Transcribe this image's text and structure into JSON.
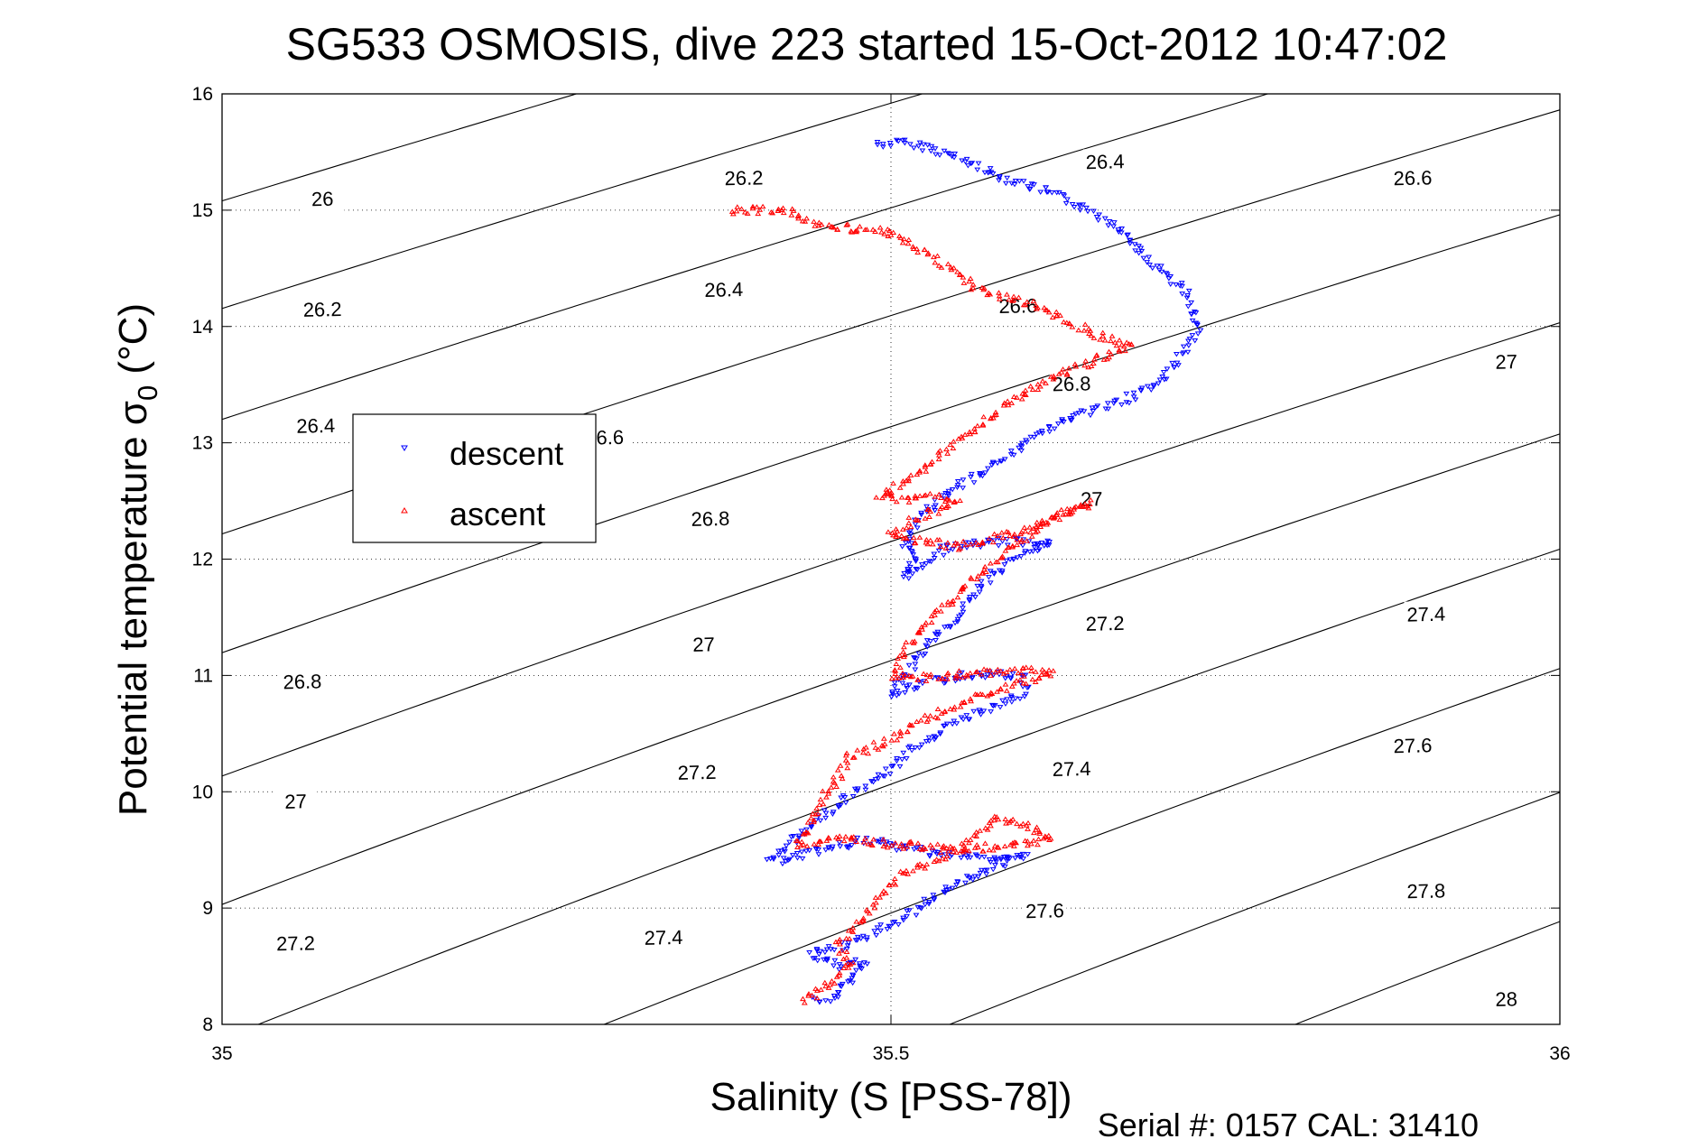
{
  "chart_data": {
    "type": "scatter",
    "title": "SG533 OSMOSIS, dive 223 started 15-Oct-2012 10:47:02",
    "xlabel": "Salinity (S [PSS-78])",
    "ylabel_main": "Potential temperature σ",
    "ylabel_sub": "0",
    "ylabel_unit": " (°C)",
    "footer": "Serial #: 0157  CAL: 31410",
    "xlim": [
      35,
      36
    ],
    "ylim": [
      8,
      16
    ],
    "x_ticks": [
      35,
      35.5,
      36
    ],
    "x_tick_labels": [
      "35",
      "35.5",
      "36"
    ],
    "y_ticks": [
      8,
      9,
      10,
      11,
      12,
      13,
      14,
      15,
      16
    ],
    "y_tick_labels": [
      "8",
      "9",
      "10",
      "11",
      "12",
      "13",
      "14",
      "15",
      "16"
    ],
    "grid": "dotted",
    "legend_position": "left-middle",
    "contours": {
      "levels": [
        26,
        26.2,
        26.4,
        26.6,
        26.8,
        27,
        27.2,
        27.4,
        27.6,
        27.8,
        28
      ],
      "labels": [
        {
          "text": "26",
          "s": 35.075,
          "t": 15.1
        },
        {
          "text": "26.2",
          "s": 35.075,
          "t": 14.15
        },
        {
          "text": "26.4",
          "s": 35.07,
          "t": 13.15
        },
        {
          "text": "26.8",
          "s": 35.06,
          "t": 10.95
        },
        {
          "text": "27",
          "s": 35.055,
          "t": 9.92
        },
        {
          "text": "27.2",
          "s": 35.055,
          "t": 8.7
        },
        {
          "text": "26.2",
          "s": 35.39,
          "t": 15.28
        },
        {
          "text": "26.4",
          "s": 35.375,
          "t": 14.32
        },
        {
          "text": "6.6",
          "s": 35.29,
          "t": 13.05
        },
        {
          "text": "26.8",
          "s": 35.365,
          "t": 12.35
        },
        {
          "text": "27",
          "s": 35.36,
          "t": 11.27
        },
        {
          "text": "27.2",
          "s": 35.355,
          "t": 10.17
        },
        {
          "text": "27.4",
          "s": 35.33,
          "t": 8.75
        },
        {
          "text": "26.4",
          "s": 35.66,
          "t": 15.42
        },
        {
          "text": "26.6",
          "s": 35.595,
          "t": 14.18
        },
        {
          "text": "26.8",
          "s": 35.635,
          "t": 13.51
        },
        {
          "text": "27",
          "s": 35.65,
          "t": 12.52
        },
        {
          "text": "27.2",
          "s": 35.66,
          "t": 11.45
        },
        {
          "text": "27.4",
          "s": 35.635,
          "t": 10.2
        },
        {
          "text": "27.6",
          "s": 35.615,
          "t": 8.98
        },
        {
          "text": "26.6",
          "s": 35.89,
          "t": 15.28
        },
        {
          "text": "27",
          "s": 35.96,
          "t": 13.7
        },
        {
          "text": "27.4",
          "s": 35.9,
          "t": 11.53
        },
        {
          "text": "27.6",
          "s": 35.89,
          "t": 10.4
        },
        {
          "text": "27.8",
          "s": 35.9,
          "t": 9.15
        },
        {
          "text": "28",
          "s": 35.96,
          "t": 8.22
        }
      ]
    },
    "series": [
      {
        "name": "descent",
        "color": "#0000ff",
        "marker": "triangle-down",
        "path": [
          [
            35.49,
            15.57
          ],
          [
            35.51,
            15.58
          ],
          [
            35.53,
            15.54
          ],
          [
            35.55,
            15.45
          ],
          [
            35.58,
            15.3
          ],
          [
            35.62,
            15.15
          ],
          [
            35.65,
            15.0
          ],
          [
            35.67,
            14.85
          ],
          [
            35.69,
            14.6
          ],
          [
            35.72,
            14.3
          ],
          [
            35.73,
            14.0
          ],
          [
            35.72,
            13.8
          ],
          [
            35.7,
            13.5
          ],
          [
            35.67,
            13.35
          ],
          [
            35.63,
            13.2
          ],
          [
            35.6,
            13.0
          ],
          [
            35.57,
            12.75
          ],
          [
            35.54,
            12.55
          ],
          [
            35.52,
            12.35
          ],
          [
            35.51,
            12.15
          ],
          [
            35.52,
            12.0
          ],
          [
            35.51,
            11.85
          ],
          [
            35.54,
            12.1
          ],
          [
            35.58,
            12.15
          ],
          [
            35.62,
            12.15
          ],
          [
            35.59,
            12.0
          ],
          [
            35.57,
            11.8
          ],
          [
            35.55,
            11.5
          ],
          [
            35.53,
            11.3
          ],
          [
            35.51,
            11.0
          ],
          [
            35.5,
            10.85
          ],
          [
            35.53,
            10.95
          ],
          [
            35.57,
            11.02
          ],
          [
            35.6,
            10.98
          ],
          [
            35.6,
            10.85
          ],
          [
            35.58,
            10.75
          ],
          [
            35.55,
            10.6
          ],
          [
            35.52,
            10.4
          ],
          [
            35.5,
            10.2
          ],
          [
            35.47,
            9.98
          ],
          [
            35.45,
            9.8
          ],
          [
            35.43,
            9.6
          ],
          [
            35.41,
            9.4
          ],
          [
            35.45,
            9.5
          ],
          [
            35.48,
            9.58
          ],
          [
            35.51,
            9.52
          ],
          [
            35.55,
            9.45
          ],
          [
            35.58,
            9.42
          ],
          [
            35.6,
            9.45
          ],
          [
            35.58,
            9.38
          ],
          [
            35.55,
            9.2
          ],
          [
            35.52,
            9.0
          ],
          [
            35.49,
            8.8
          ],
          [
            35.47,
            8.7
          ],
          [
            35.44,
            8.6
          ],
          [
            35.46,
            8.5
          ],
          [
            35.48,
            8.55
          ],
          [
            35.47,
            8.4
          ],
          [
            35.46,
            8.25
          ],
          [
            35.44,
            8.2
          ]
        ]
      },
      {
        "name": "ascent",
        "color": "#ff0000",
        "marker": "triangle-up",
        "path": [
          [
            35.38,
            14.99
          ],
          [
            35.4,
            15.0
          ],
          [
            35.42,
            15.0
          ],
          [
            35.43,
            14.92
          ],
          [
            35.46,
            14.85
          ],
          [
            35.5,
            14.8
          ],
          [
            35.53,
            14.6
          ],
          [
            35.56,
            14.35
          ],
          [
            35.6,
            14.2
          ],
          [
            35.64,
            14.0
          ],
          [
            35.66,
            13.9
          ],
          [
            35.68,
            13.85
          ],
          [
            35.65,
            13.7
          ],
          [
            35.62,
            13.55
          ],
          [
            35.59,
            13.35
          ],
          [
            35.56,
            13.1
          ],
          [
            35.53,
            12.85
          ],
          [
            35.51,
            12.65
          ],
          [
            35.49,
            12.55
          ],
          [
            35.51,
            12.5
          ],
          [
            35.53,
            12.55
          ],
          [
            35.55,
            12.5
          ],
          [
            35.52,
            12.35
          ],
          [
            35.5,
            12.2
          ],
          [
            35.53,
            12.15
          ],
          [
            35.55,
            12.1
          ],
          [
            35.6,
            12.25
          ],
          [
            35.63,
            12.4
          ],
          [
            35.65,
            12.48
          ],
          [
            35.62,
            12.35
          ],
          [
            35.59,
            12.1
          ],
          [
            35.56,
            11.8
          ],
          [
            35.53,
            11.5
          ],
          [
            35.51,
            11.2
          ],
          [
            35.5,
            11.0
          ],
          [
            35.53,
            10.98
          ],
          [
            35.57,
            11.02
          ],
          [
            35.6,
            11.05
          ],
          [
            35.62,
            11.02
          ],
          [
            35.6,
            10.95
          ],
          [
            35.57,
            10.85
          ],
          [
            35.53,
            10.65
          ],
          [
            35.5,
            10.45
          ],
          [
            35.47,
            10.3
          ],
          [
            35.46,
            10.1
          ],
          [
            35.45,
            9.95
          ],
          [
            35.44,
            9.7
          ],
          [
            35.43,
            9.55
          ],
          [
            35.46,
            9.6
          ],
          [
            35.5,
            9.55
          ],
          [
            35.55,
            9.5
          ],
          [
            35.6,
            9.55
          ],
          [
            35.62,
            9.6
          ],
          [
            35.6,
            9.7
          ],
          [
            35.58,
            9.78
          ],
          [
            35.55,
            9.5
          ],
          [
            35.51,
            9.3
          ],
          [
            35.49,
            9.1
          ],
          [
            35.48,
            8.9
          ],
          [
            35.46,
            8.7
          ],
          [
            35.47,
            8.5
          ],
          [
            35.45,
            8.3
          ],
          [
            35.43,
            8.18
          ]
        ]
      }
    ]
  }
}
